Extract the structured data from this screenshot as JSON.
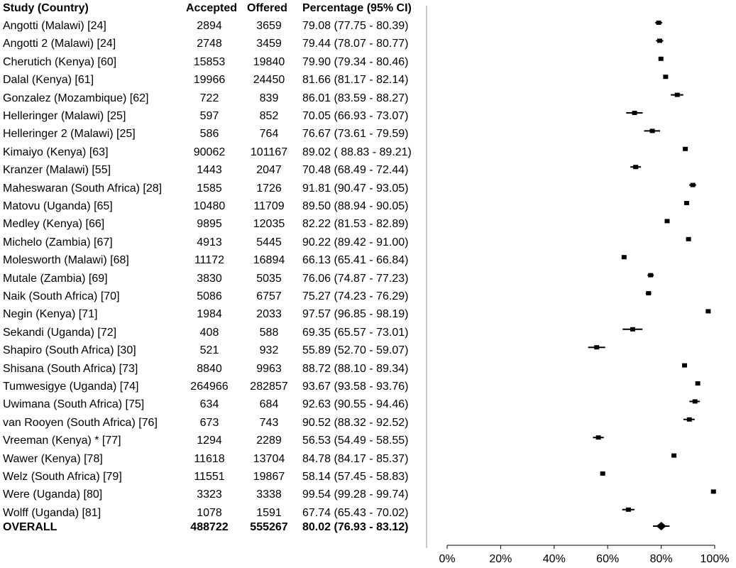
{
  "header": {
    "study": "Study (Country)",
    "accepted": "Accepted",
    "offered": "Offered",
    "percentage": "Percentage (95% CI)"
  },
  "rows": [
    {
      "study": "Angotti (Malawi) [24]",
      "accepted": "2894",
      "offered": "3659",
      "pct": "79.08 (77.75 - 80.39)"
    },
    {
      "study": "Angotti 2 (Malawi) [24]",
      "accepted": "2748",
      "offered": "3459",
      "pct": "79.44 (78.07 - 80.77)"
    },
    {
      "study": "Cherutich (Kenya) [60]",
      "accepted": "15853",
      "offered": "19840",
      "pct": "79.90 (79.34 - 80.46)"
    },
    {
      "study": "Dalal (Kenya) [61]",
      "accepted": "19966",
      "offered": "24450",
      "pct": "81.66 (81.17 - 82.14)"
    },
    {
      "study": "Gonzalez (Mozambique) [62]",
      "accepted": "722",
      "offered": "839",
      "pct": "86.01 (83.59 - 88.27)"
    },
    {
      "study": "Helleringer (Malawi) [25]",
      "accepted": "597",
      "offered": "852",
      "pct": "70.05 (66.93 - 73.07)"
    },
    {
      "study": "Helleringer 2 (Malawi) [25]",
      "accepted": "586",
      "offered": "764",
      "pct": "76.67 (73.61 - 79.59)"
    },
    {
      "study": "Kimaiyo (Kenya) [63]",
      "accepted": "90062",
      "offered": "101167",
      "pct": "89.02 ( 88.83 - 89.21)"
    },
    {
      "study": "Kranzer (Malawi) [55]",
      "accepted": "1443",
      "offered": "2047",
      "pct": "70.48 (68.49 - 72.44)"
    },
    {
      "study": "Maheswaran (South Africa) [28]",
      "accepted": "1585",
      "offered": "1726",
      "pct": "91.81 (90.47 - 93.05)"
    },
    {
      "study": "Matovu (Uganda) [65]",
      "accepted": "10480",
      "offered": "11709",
      "pct": "89.50 (88.94 - 90.05)"
    },
    {
      "study": "Medley (Kenya) [66]",
      "accepted": "9895",
      "offered": "12035",
      "pct": "82.22 (81.53 - 82.89)"
    },
    {
      "study": "Michelo (Zambia) [67]",
      "accepted": "4913",
      "offered": "5445",
      "pct": "90.22 (89.42 - 91.00)"
    },
    {
      "study": "Molesworth (Malawi) [68]",
      "accepted": "11172",
      "offered": "16894",
      "pct": "66.13 (65.41 - 66.84)"
    },
    {
      "study": "Mutale (Zambia) [69]",
      "accepted": "3830",
      "offered": "5035",
      "pct": "76.06 (74.87 - 77.23)"
    },
    {
      "study": "Naik (South Africa) [70]",
      "accepted": "5086",
      "offered": "6757",
      "pct": "75.27 (74.23 - 76.29)"
    },
    {
      "study": "Negin (Kenya) [71]",
      "accepted": "1984",
      "offered": "2033",
      "pct": "97.57 (96.85 - 98.19)"
    },
    {
      "study": "Sekandi (Uganda) [72]",
      "accepted": "408",
      "offered": "588",
      "pct": "69.35 (65.57 - 73.01)"
    },
    {
      "study": "Shapiro (South Africa) [30]",
      "accepted": "521",
      "offered": "932",
      "pct": "55.89 (52.70 - 59.07)"
    },
    {
      "study": "Shisana (South Africa) [73]",
      "accepted": "8840",
      "offered": "9963",
      "pct": "88.72 (88.10 - 89.34)"
    },
    {
      "study": "Tumwesigye (Uganda) [74]",
      "accepted": "264966",
      "offered": "282857",
      "pct": "93.67 (93.58 - 93.76)"
    },
    {
      "study": "Uwimana (South Africa) [75]",
      "accepted": "634",
      "offered": "684",
      "pct": "92.63 (90.55 - 94.46)"
    },
    {
      "study": "van Rooyen (South Africa) [76]",
      "accepted": "673",
      "offered": "743",
      "pct": "90.52 (88.32 - 92.52)"
    },
    {
      "study": "Vreeman (Kenya) * [77]",
      "accepted": "1294",
      "offered": "2289",
      "pct": "56.53 (54.49 - 58.55)"
    },
    {
      "study": "Wawer (Kenya) [78]",
      "accepted": "11618",
      "offered": "13704",
      "pct": "84.78 (84.17 - 85.37)"
    },
    {
      "study": "Welz (South Africa) [79]",
      "accepted": "11551",
      "offered": "19867",
      "pct": "58.14 (57.45 - 58.83)"
    },
    {
      "study": "Were (Uganda) [80]",
      "accepted": "3323",
      "offered": "3338",
      "pct": "99.54 (99.28 - 99.74)"
    },
    {
      "study": "Wolff (Uganda) [81]",
      "accepted": "1078",
      "offered": "1591",
      "pct": "67.74 (65.43 - 70.02)"
    }
  ],
  "overall": {
    "study": "OVERALL",
    "accepted": "488722",
    "offered": "555267",
    "pct": "80.02 (76.93 - 83.12)"
  },
  "chart_data": {
    "type": "scatter",
    "subtype": "forest-plot",
    "xlim": [
      0,
      100
    ],
    "xticks": [
      "0%",
      "20%",
      "40%",
      "60%",
      "80%",
      "100%"
    ],
    "points": [
      {
        "est": 79.08,
        "lo": 77.75,
        "hi": 80.39
      },
      {
        "est": 79.44,
        "lo": 78.07,
        "hi": 80.77
      },
      {
        "est": 79.9,
        "lo": 79.34,
        "hi": 80.46
      },
      {
        "est": 81.66,
        "lo": 81.17,
        "hi": 82.14
      },
      {
        "est": 86.01,
        "lo": 83.59,
        "hi": 88.27
      },
      {
        "est": 70.05,
        "lo": 66.93,
        "hi": 73.07
      },
      {
        "est": 76.67,
        "lo": 73.61,
        "hi": 79.59
      },
      {
        "est": 89.02,
        "lo": 88.83,
        "hi": 89.21
      },
      {
        "est": 70.48,
        "lo": 68.49,
        "hi": 72.44
      },
      {
        "est": 91.81,
        "lo": 90.47,
        "hi": 93.05
      },
      {
        "est": 89.5,
        "lo": 88.94,
        "hi": 90.05
      },
      {
        "est": 82.22,
        "lo": 81.53,
        "hi": 82.89
      },
      {
        "est": 90.22,
        "lo": 89.42,
        "hi": 91.0
      },
      {
        "est": 66.13,
        "lo": 65.41,
        "hi": 66.84
      },
      {
        "est": 76.06,
        "lo": 74.87,
        "hi": 77.23
      },
      {
        "est": 75.27,
        "lo": 74.23,
        "hi": 76.29
      },
      {
        "est": 97.57,
        "lo": 96.85,
        "hi": 98.19
      },
      {
        "est": 69.35,
        "lo": 65.57,
        "hi": 73.01
      },
      {
        "est": 55.89,
        "lo": 52.7,
        "hi": 59.07
      },
      {
        "est": 88.72,
        "lo": 88.1,
        "hi": 89.34
      },
      {
        "est": 93.67,
        "lo": 93.58,
        "hi": 93.76
      },
      {
        "est": 92.63,
        "lo": 90.55,
        "hi": 94.46
      },
      {
        "est": 90.52,
        "lo": 88.32,
        "hi": 92.52
      },
      {
        "est": 56.53,
        "lo": 54.49,
        "hi": 58.55
      },
      {
        "est": 84.78,
        "lo": 84.17,
        "hi": 85.37
      },
      {
        "est": 58.14,
        "lo": 57.45,
        "hi": 58.83
      },
      {
        "est": 99.54,
        "lo": 99.28,
        "hi": 99.74
      },
      {
        "est": 67.74,
        "lo": 65.43,
        "hi": 70.02
      }
    ],
    "overall": {
      "est": 80.02,
      "lo": 76.93,
      "hi": 83.12
    }
  }
}
